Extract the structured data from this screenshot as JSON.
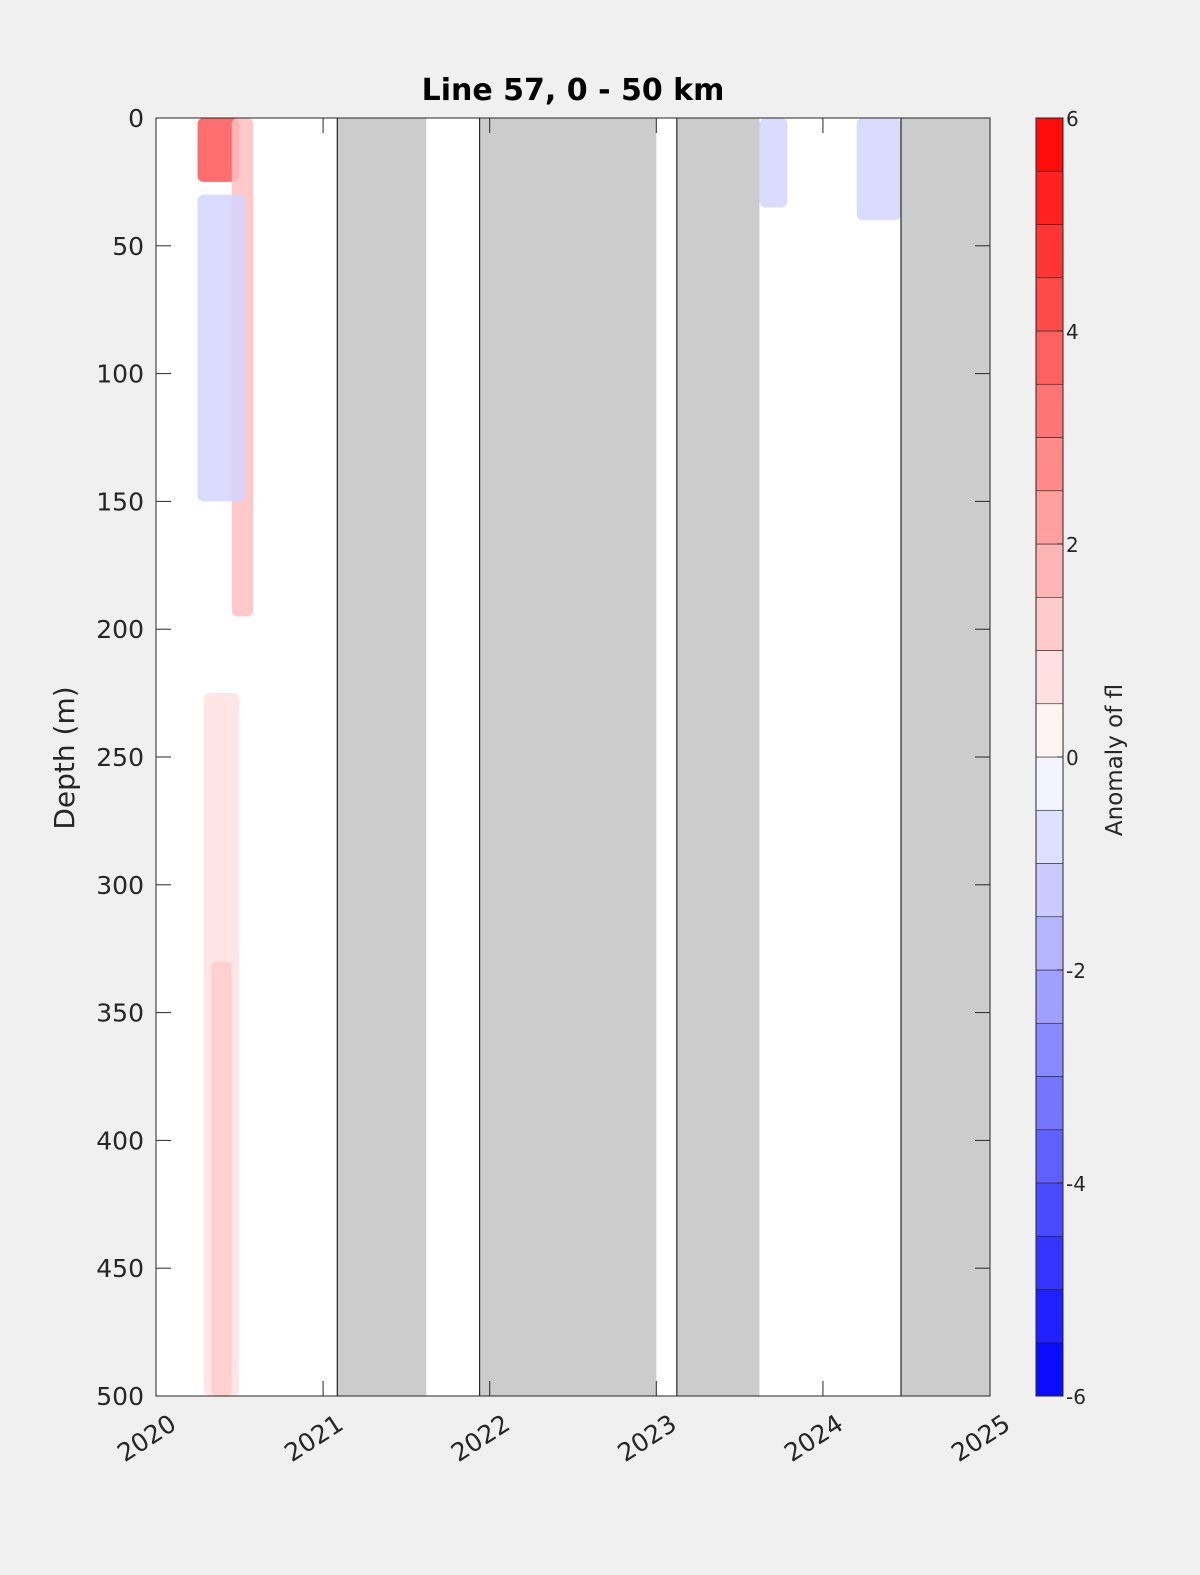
{
  "chart_data": {
    "type": "heatmap",
    "title": "Line 57, 0 - 50 km",
    "xlabel": "",
    "ylabel": "Depth (m)",
    "xlim": [
      "2020-01-01",
      "2025-01-01"
    ],
    "x_tick_labels": [
      "2020",
      "2021",
      "2022",
      "2023",
      "2024",
      "2025"
    ],
    "ylim": [
      0,
      500
    ],
    "y_reversed": true,
    "y_tick_labels": [
      "0",
      "50",
      "100",
      "150",
      "200",
      "250",
      "300",
      "350",
      "400",
      "450",
      "500"
    ],
    "grid": false,
    "colorbar": {
      "label": "Anomaly of fl",
      "range": [
        -6,
        6
      ],
      "step": 0.5,
      "tick_labels": [
        "-6",
        "-4",
        "-2",
        "0",
        "2",
        "4",
        "6"
      ],
      "low_color": "#0000ff",
      "zero_color": "#ffffff",
      "high_color": "#ff0000"
    },
    "no_data_color": "#cccccc",
    "no_data_periods": [
      [
        "2021-02-01",
        "2021-08-15"
      ],
      [
        "2021-12-10",
        "2023-01-01"
      ],
      [
        "2023-02-15",
        "2023-08-15"
      ],
      [
        "2024-06-20",
        "2025-01-01"
      ]
    ],
    "anomaly_features": [
      {
        "start": "2020-04-01",
        "end": "2020-07-01",
        "depth_top": 0,
        "depth_bottom": 25,
        "value": 4
      },
      {
        "start": "2020-06-15",
        "end": "2020-08-01",
        "depth_top": 0,
        "depth_bottom": 195,
        "value": 1.5
      },
      {
        "start": "2020-04-01",
        "end": "2020-07-15",
        "depth_top": 30,
        "depth_bottom": 150,
        "value": -1
      },
      {
        "start": "2020-04-15",
        "end": "2020-07-01",
        "depth_top": 225,
        "depth_bottom": 500,
        "value": 0.7
      },
      {
        "start": "2020-05-01",
        "end": "2020-06-15",
        "depth_top": 330,
        "depth_bottom": 500,
        "value": 1.2
      },
      {
        "start": "2023-08-15",
        "end": "2023-10-15",
        "depth_top": 0,
        "depth_bottom": 35,
        "value": -1
      },
      {
        "start": "2024-03-15",
        "end": "2024-06-20",
        "depth_top": 0,
        "depth_bottom": 40,
        "value": -1
      }
    ]
  }
}
